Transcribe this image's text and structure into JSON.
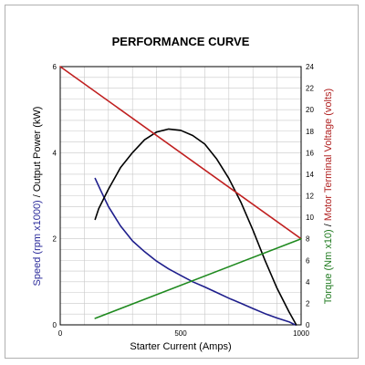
{
  "chart_data": {
    "type": "line",
    "title": "PERFORMANCE CURVE",
    "xlabel": "Starter Current (Amps)",
    "xlim": [
      0,
      1000
    ],
    "x_ticks": [
      "0",
      "500",
      "1000"
    ],
    "grid": true,
    "left_axis": {
      "label_part1": "Speed (rpm x1000)",
      "separator": "/",
      "label_part2": "Output Power (kW)",
      "label_color_part1": "#2a2a9a",
      "label_color_part2": "#000000",
      "ylim": [
        0,
        6
      ],
      "ticks": [
        "0",
        "2",
        "4",
        "6"
      ]
    },
    "right_axis": {
      "label_part1": "Torque (Nm x10)",
      "separator": "/",
      "label_part2": "Motor Terminal Voltage (volts)",
      "label_color_part1": "#1f7a1f",
      "label_color_part2": "#b02020",
      "ylim": [
        0,
        24
      ],
      "ticks": [
        "0",
        "2",
        "4",
        "6",
        "8",
        "10",
        "12",
        "14",
        "16",
        "18",
        "20",
        "22",
        "24"
      ]
    },
    "series": [
      {
        "axis": "left",
        "color": "#1e1e8c",
        "points": [
          [
            145,
            3.4
          ],
          [
            170,
            3.1
          ],
          [
            200,
            2.75
          ],
          [
            250,
            2.3
          ],
          [
            300,
            1.95
          ],
          [
            350,
            1.7
          ],
          [
            400,
            1.48
          ],
          [
            450,
            1.3
          ],
          [
            500,
            1.15
          ],
          [
            550,
            1.0
          ],
          [
            600,
            0.88
          ],
          [
            650,
            0.75
          ],
          [
            700,
            0.62
          ],
          [
            750,
            0.5
          ],
          [
            800,
            0.38
          ],
          [
            850,
            0.26
          ],
          [
            900,
            0.16
          ],
          [
            950,
            0.07
          ],
          [
            975,
            0.0
          ]
        ]
      },
      {
        "axis": "left",
        "color": "#000000",
        "points": [
          [
            145,
            2.45
          ],
          [
            160,
            2.7
          ],
          [
            200,
            3.15
          ],
          [
            250,
            3.65
          ],
          [
            300,
            4.0
          ],
          [
            350,
            4.3
          ],
          [
            400,
            4.48
          ],
          [
            450,
            4.55
          ],
          [
            500,
            4.52
          ],
          [
            550,
            4.4
          ],
          [
            600,
            4.2
          ],
          [
            650,
            3.85
          ],
          [
            700,
            3.4
          ],
          [
            750,
            2.85
          ],
          [
            800,
            2.2
          ],
          [
            850,
            1.5
          ],
          [
            900,
            0.85
          ],
          [
            950,
            0.3
          ],
          [
            980,
            0.0
          ]
        ]
      },
      {
        "axis": "right",
        "color": "#c02020",
        "points": [
          [
            0,
            24.0
          ],
          [
            1000,
            8.0
          ]
        ]
      },
      {
        "axis": "right",
        "color": "#1f8a1f",
        "points": [
          [
            145,
            0.6
          ],
          [
            1000,
            8.0
          ]
        ]
      }
    ]
  }
}
